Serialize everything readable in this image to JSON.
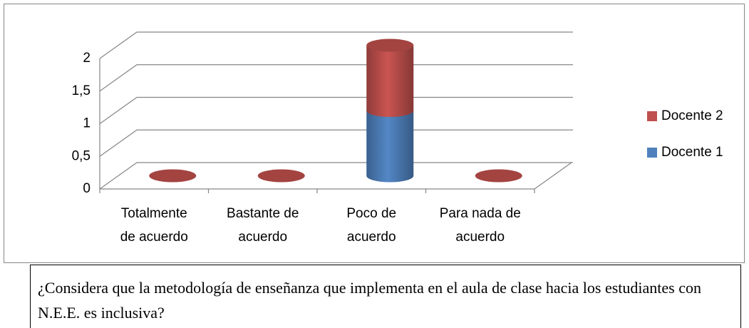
{
  "chart_data": {
    "type": "bar3d_stacked_cylinder",
    "categories": [
      "Totalmente de acuerdo",
      "Bastante de acuerdo",
      "Poco de acuerdo",
      "Para nada de acuerdo"
    ],
    "series": [
      {
        "name": "Docente 1",
        "color": "#4f81bd",
        "values": [
          0,
          0,
          1,
          0
        ]
      },
      {
        "name": "Docente 2",
        "color": "#c0504d",
        "values": [
          0,
          0,
          1,
          0
        ]
      }
    ],
    "ylim": [
      0,
      2
    ],
    "yticks": [
      0,
      {
        "value": 0.5,
        "label": "0,5"
      },
      1,
      {
        "value": 1.5,
        "label": "1,5"
      },
      2
    ],
    "grid": true,
    "legend": "right"
  },
  "caption": "¿Considera que la metodología de enseñanza que implementa en el aula de clase hacia los estudiantes con N.E.E. es inclusiva?"
}
